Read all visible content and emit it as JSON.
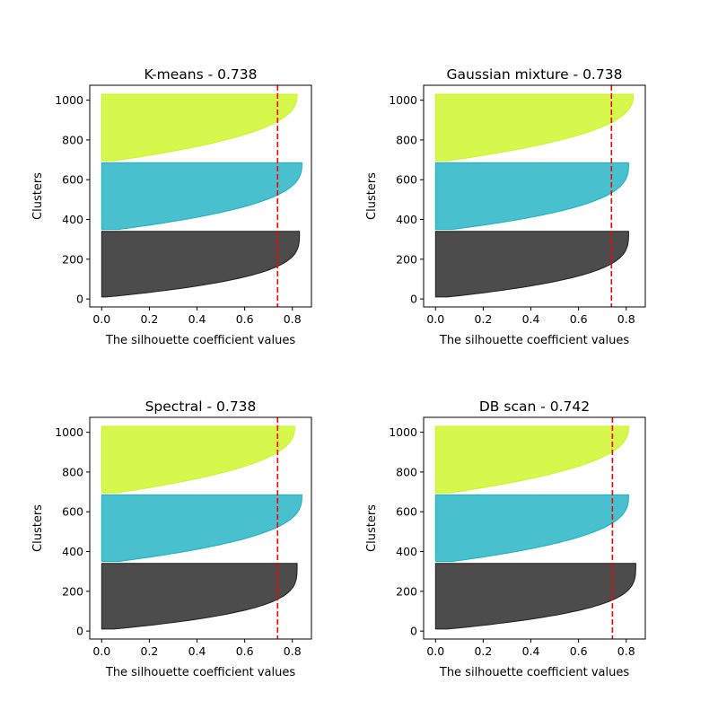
{
  "chart_data": [
    {
      "type": "area",
      "title": "K-means - 0.738",
      "xlabel": "The silhouette coefficient values",
      "ylabel": "Clusters",
      "xlim": [
        -0.05,
        0.88
      ],
      "ylim": [
        -40,
        1075
      ],
      "xticks": [
        "0.0",
        "0.2",
        "0.4",
        "0.6",
        "0.8"
      ],
      "yticks": [
        "0",
        "200",
        "400",
        "600",
        "800",
        "1000"
      ],
      "average_line": 0.738,
      "series": [
        {
          "color": "#1f1f1f",
          "y_start": 10,
          "y_end": 340,
          "max": 0.83,
          "knee": 0.29,
          "min": 0.02
        },
        {
          "color": "#1ab0c0",
          "y_start": 350,
          "y_end": 685,
          "max": 0.84,
          "knee": 0.36,
          "min": 0.07
        },
        {
          "color": "#ccf51f",
          "y_start": 695,
          "y_end": 1030,
          "max": 0.82,
          "knee": 0.4,
          "min": 0.05
        }
      ]
    },
    {
      "type": "area",
      "title": "Gaussian mixture - 0.738",
      "xlabel": "The silhouette coefficient values",
      "ylabel": "Clusters",
      "xlim": [
        -0.05,
        0.88
      ],
      "ylim": [
        -40,
        1075
      ],
      "xticks": [
        "0.0",
        "0.2",
        "0.4",
        "0.6",
        "0.8"
      ],
      "yticks": [
        "0",
        "200",
        "400",
        "600",
        "800",
        "1000"
      ],
      "average_line": 0.738,
      "series": [
        {
          "color": "#1f1f1f",
          "y_start": 10,
          "y_end": 340,
          "max": 0.81,
          "knee": 0.3,
          "min": 0.05
        },
        {
          "color": "#1ab0c0",
          "y_start": 350,
          "y_end": 685,
          "max": 0.81,
          "knee": 0.34,
          "min": 0.07
        },
        {
          "color": "#ccf51f",
          "y_start": 695,
          "y_end": 1030,
          "max": 0.83,
          "knee": 0.4,
          "min": 0.05
        }
      ]
    },
    {
      "type": "area",
      "title": "Spectral - 0.738",
      "xlabel": "The silhouette coefficient values",
      "ylabel": "Clusters",
      "xlim": [
        -0.05,
        0.88
      ],
      "ylim": [
        -40,
        1075
      ],
      "xticks": [
        "0.0",
        "0.2",
        "0.4",
        "0.6",
        "0.8"
      ],
      "yticks": [
        "0",
        "200",
        "400",
        "600",
        "800",
        "1000"
      ],
      "average_line": 0.738,
      "series": [
        {
          "color": "#1f1f1f",
          "y_start": 10,
          "y_end": 340,
          "max": 0.82,
          "knee": 0.27,
          "min": 0.05
        },
        {
          "color": "#1ab0c0",
          "y_start": 350,
          "y_end": 685,
          "max": 0.84,
          "knee": 0.36,
          "min": 0.07
        },
        {
          "color": "#ccf51f",
          "y_start": 695,
          "y_end": 1030,
          "max": 0.81,
          "knee": 0.4,
          "min": 0.06
        }
      ]
    },
    {
      "type": "area",
      "title": "DB scan - 0.742",
      "xlabel": "The silhouette coefficient values",
      "ylabel": "Clusters",
      "xlim": [
        -0.05,
        0.88
      ],
      "ylim": [
        -40,
        1075
      ],
      "xticks": [
        "0.0",
        "0.2",
        "0.4",
        "0.6",
        "0.8"
      ],
      "yticks": [
        "0",
        "200",
        "400",
        "600",
        "800",
        "1000"
      ],
      "average_line": 0.742,
      "series": [
        {
          "color": "#1f1f1f",
          "y_start": 10,
          "y_end": 340,
          "max": 0.84,
          "knee": 0.28,
          "min": 0.05
        },
        {
          "color": "#1ab0c0",
          "y_start": 350,
          "y_end": 685,
          "max": 0.81,
          "knee": 0.36,
          "min": 0.07
        },
        {
          "color": "#ccf51f",
          "y_start": 695,
          "y_end": 1030,
          "max": 0.81,
          "knee": 0.4,
          "min": 0.06
        }
      ]
    }
  ]
}
